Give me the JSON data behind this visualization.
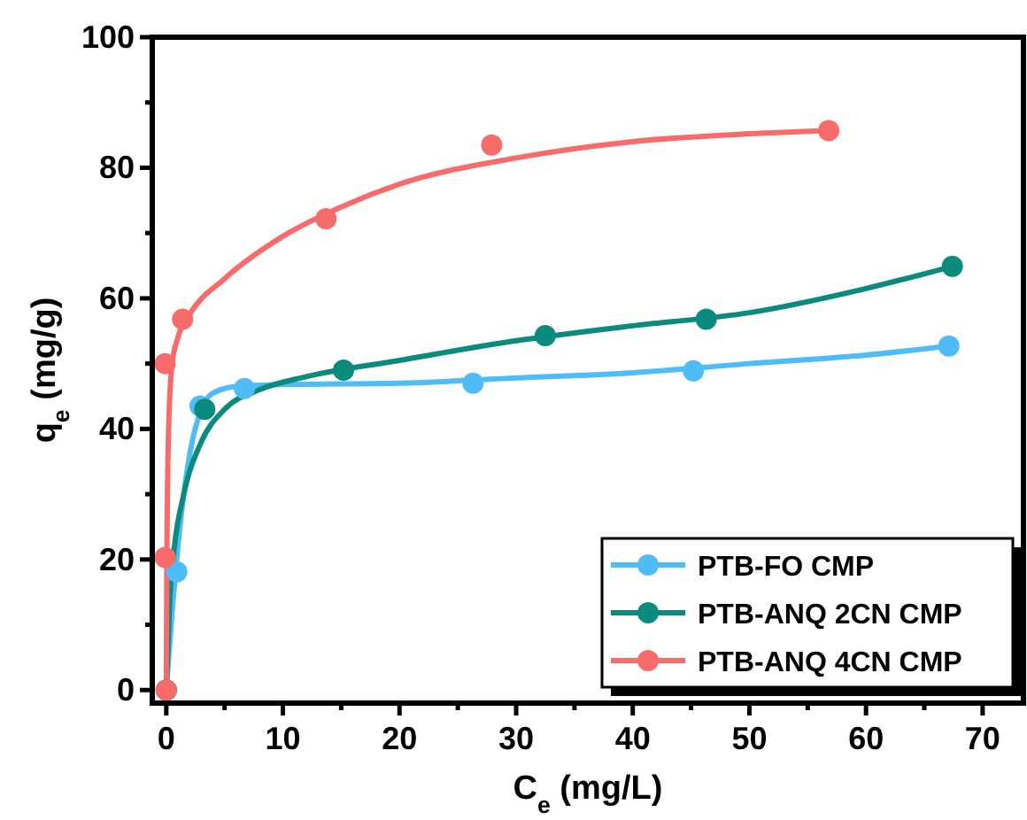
{
  "chart_data": {
    "type": "scatter",
    "xlabel": "C$_{e}$ (mg/L)",
    "ylabel": "q$_{e}$ (mg/g)",
    "xlim": [
      -1.2,
      73.5
    ],
    "ylim": [
      -2,
      100
    ],
    "xticks": [
      0,
      {
        "value": 5,
        "label": null
      },
      10,
      {
        "value": 15,
        "label": null
      },
      20,
      {
        "value": 25,
        "label": null
      },
      30,
      {
        "value": 35,
        "label": null
      },
      40,
      {
        "value": 45,
        "label": null
      },
      50,
      {
        "value": 55,
        "label": null
      },
      60,
      {
        "value": 65,
        "label": null
      },
      70
    ],
    "yticks": [
      0,
      {
        "value": 10,
        "label": null
      },
      20,
      {
        "value": 30,
        "label": null
      },
      40,
      {
        "value": 50,
        "label": null
      },
      60,
      {
        "value": 70,
        "label": null
      },
      80,
      {
        "value": 90,
        "label": null
      },
      100
    ],
    "marker": "circle",
    "legend": "bottom right",
    "grid": false,
    "series": [
      {
        "type": "line",
        "marker": "none",
        "color": "#4dbcf7",
        "x": [
          0,
          0.5,
          1,
          2,
          3,
          4,
          6,
          10,
          20,
          30,
          40,
          50,
          60,
          67.1
        ],
        "values": [
          0,
          12,
          22,
          36,
          43,
          45.5,
          46.5,
          46.8,
          47,
          47.8,
          48.6,
          50,
          51.3,
          52.7
        ]
      },
      {
        "type": "line",
        "marker": "none",
        "color": "#0b8a7e",
        "x": [
          0,
          0.3,
          0.7,
          1.5,
          3,
          5,
          8,
          12,
          20,
          30,
          40,
          50,
          60,
          67.4
        ],
        "values": [
          0,
          14,
          22,
          30,
          38,
          43,
          46,
          48,
          50.5,
          53.5,
          55.8,
          57.8,
          61.5,
          64.9
        ]
      },
      {
        "type": "line",
        "marker": "none",
        "color": "#f76b6b",
        "x": [
          0,
          0.05,
          0.2,
          0.5,
          1,
          2,
          5,
          10,
          15,
          20,
          30,
          40,
          50,
          56.8
        ],
        "values": [
          0,
          20,
          40,
          50,
          54,
          57.5,
          63,
          69.5,
          74,
          77.5,
          81.5,
          84,
          85.2,
          85.7
        ]
      },
      {
        "name": "PTB-FO CMP",
        "color": "#4dbcf7",
        "x": [
          0,
          0.9,
          2.9,
          6.7,
          26.3,
          45.2,
          67.1
        ],
        "values": [
          0,
          18.1,
          43.5,
          46.2,
          47,
          48.9,
          52.7
        ]
      },
      {
        "name": "PTB-ANQ 2CN CMP",
        "color": "#0b8a7e",
        "x": [
          0,
          3.3,
          15.2,
          32.5,
          46.3,
          67.4
        ],
        "values": [
          0,
          43,
          49,
          54.3,
          56.8,
          64.9
        ]
      },
      {
        "name": "PTB-ANQ 4CN CMP",
        "color": "#f76b6b",
        "x": [
          0,
          -0.1,
          -0.1,
          1.4,
          13.7,
          27.9,
          56.8
        ],
        "values": [
          0,
          20.3,
          50,
          56.8,
          72.2,
          83.5,
          85.7
        ]
      }
    ]
  }
}
